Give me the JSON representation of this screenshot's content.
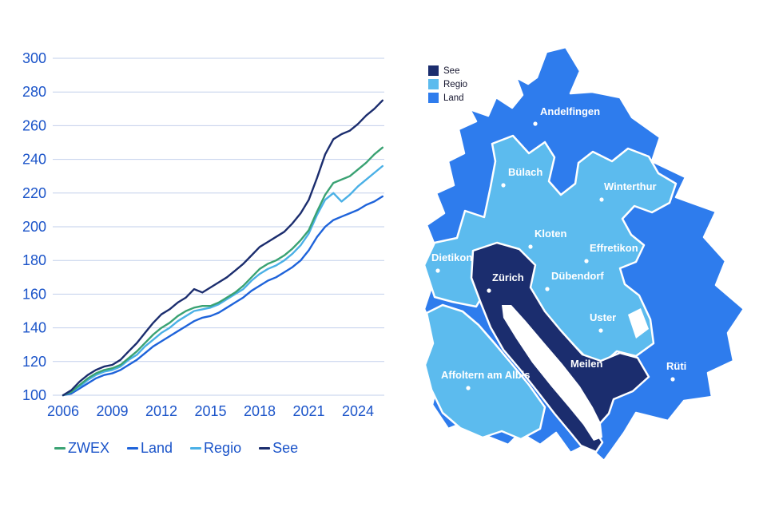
{
  "chart_data": {
    "type": "line",
    "title": "",
    "xlabel": "",
    "ylabel": "",
    "ylim": [
      100,
      300
    ],
    "yticks": [
      100,
      120,
      140,
      160,
      180,
      200,
      220,
      240,
      260,
      280,
      300
    ],
    "xticks": [
      2006,
      2009,
      2012,
      2015,
      2018,
      2021,
      2024
    ],
    "grid": true,
    "legend_position": "bottom",
    "tick_color": "#1b54c9",
    "grid_color": "#c2cfeb",
    "x": [
      2006,
      2006.5,
      2007,
      2007.5,
      2008,
      2008.5,
      2009,
      2009.5,
      2010,
      2010.5,
      2011,
      2011.5,
      2012,
      2012.5,
      2013,
      2013.5,
      2014,
      2014.5,
      2015,
      2015.5,
      2016,
      2016.5,
      2017,
      2017.5,
      2018,
      2018.5,
      2019,
      2019.5,
      2020,
      2020.5,
      2021,
      2021.5,
      2022,
      2022.5,
      2023,
      2023.5,
      2024,
      2024.5,
      2025,
      2025.5
    ],
    "series": [
      {
        "name": "ZWEX",
        "color": "#3aa273",
        "values": [
          100,
          102,
          106,
          110,
          113,
          115,
          116,
          118,
          122,
          126,
          131,
          136,
          140,
          143,
          147,
          150,
          152,
          153,
          153,
          155,
          158,
          161,
          165,
          170,
          175,
          178,
          180,
          183,
          187,
          192,
          198,
          209,
          219,
          226,
          228,
          230,
          234,
          238,
          243,
          247
        ]
      },
      {
        "name": "Land",
        "color": "#1e63da",
        "values": [
          100,
          101,
          104,
          107,
          110,
          112,
          113,
          115,
          118,
          121,
          125,
          129,
          132,
          135,
          138,
          141,
          144,
          146,
          147,
          149,
          152,
          155,
          158,
          162,
          165,
          168,
          170,
          173,
          176,
          180,
          186,
          194,
          200,
          204,
          206,
          208,
          210,
          213,
          215,
          218
        ]
      },
      {
        "name": "Regio",
        "color": "#4ab0e6",
        "values": [
          100,
          102,
          105,
          109,
          112,
          114,
          115,
          117,
          121,
          124,
          129,
          133,
          137,
          140,
          144,
          147,
          150,
          151,
          152,
          154,
          157,
          160,
          163,
          168,
          172,
          175,
          177,
          180,
          184,
          189,
          196,
          207,
          216,
          220,
          215,
          219,
          224,
          228,
          232,
          236
        ]
      },
      {
        "name": "See",
        "color": "#1b2d6e",
        "values": [
          100,
          103,
          108,
          112,
          115,
          117,
          118,
          121,
          126,
          131,
          137,
          143,
          148,
          151,
          155,
          158,
          163,
          161,
          164,
          167,
          170,
          174,
          178,
          183,
          188,
          191,
          194,
          197,
          202,
          208,
          216,
          229,
          243,
          252,
          255,
          257,
          261,
          266,
          270,
          275
        ]
      }
    ]
  },
  "map": {
    "colors": {
      "land": "#2e7ced",
      "regio": "#5cbbee",
      "see": "#1b2d6e",
      "lake": "#ffffff"
    },
    "legend": [
      {
        "label": "See",
        "color": "#1b2d6e"
      },
      {
        "label": "Regio",
        "color": "#5cbbee"
      },
      {
        "label": "Land",
        "color": "#2e7ced"
      }
    ],
    "labels": [
      {
        "name": "Andelfingen"
      },
      {
        "name": "Bülach"
      },
      {
        "name": "Winterthur"
      },
      {
        "name": "Kloten"
      },
      {
        "name": "Effretikon"
      },
      {
        "name": "Dietikon"
      },
      {
        "name": "Zürich"
      },
      {
        "name": "Dübendorf"
      },
      {
        "name": "Uster"
      },
      {
        "name": "Meilen"
      },
      {
        "name": "Affoltern am Albis"
      },
      {
        "name": "Rüti"
      }
    ]
  }
}
